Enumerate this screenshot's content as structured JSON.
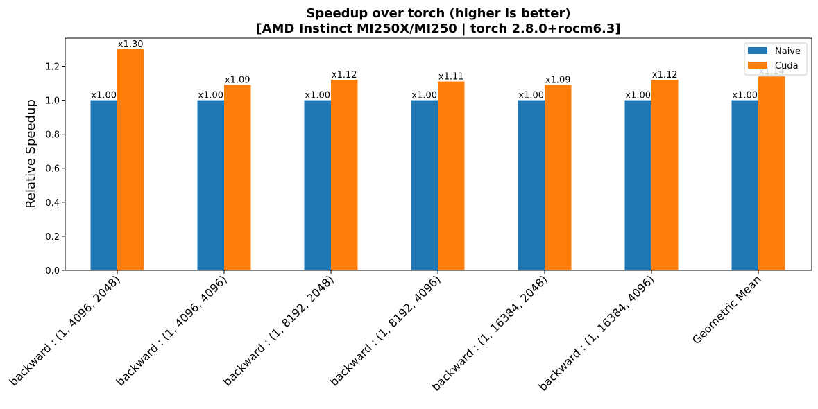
{
  "chart_data": {
    "type": "bar",
    "title_line1": "Speedup over torch (higher is better)",
    "title_line2": "[AMD Instinct MI250X/MI250 | torch 2.8.0+rocm6.3]",
    "xlabel": "",
    "ylabel": "Relative Speedup",
    "ylim": [
      0,
      1.365
    ],
    "yticks": [
      "0.0",
      "0.2",
      "0.4",
      "0.6",
      "0.8",
      "1.0",
      "1.2"
    ],
    "grid": false,
    "legend_position": "top-right",
    "categories": [
      "backward : (1, 4096, 2048)",
      "backward : (1, 4096, 4096)",
      "backward : (1, 8192, 2048)",
      "backward : (1, 8192, 4096)",
      "backward : (1, 16384, 2048)",
      "backward : (1, 16384, 4096)",
      "Geometric Mean"
    ],
    "series": [
      {
        "name": "Naive",
        "color": "#1f77b4",
        "values": [
          1.0,
          1.0,
          1.0,
          1.0,
          1.0,
          1.0,
          1.0
        ],
        "labels": [
          "x1.00",
          "x1.00",
          "x1.00",
          "x1.00",
          "x1.00",
          "x1.00",
          "x1.00"
        ]
      },
      {
        "name": "Cuda",
        "color": "#ff7f0e",
        "values": [
          1.3,
          1.09,
          1.12,
          1.11,
          1.09,
          1.12,
          1.14
        ],
        "labels": [
          "x1.30",
          "x1.09",
          "x1.12",
          "x1.11",
          "x1.09",
          "x1.12",
          "x1.14"
        ]
      }
    ]
  }
}
